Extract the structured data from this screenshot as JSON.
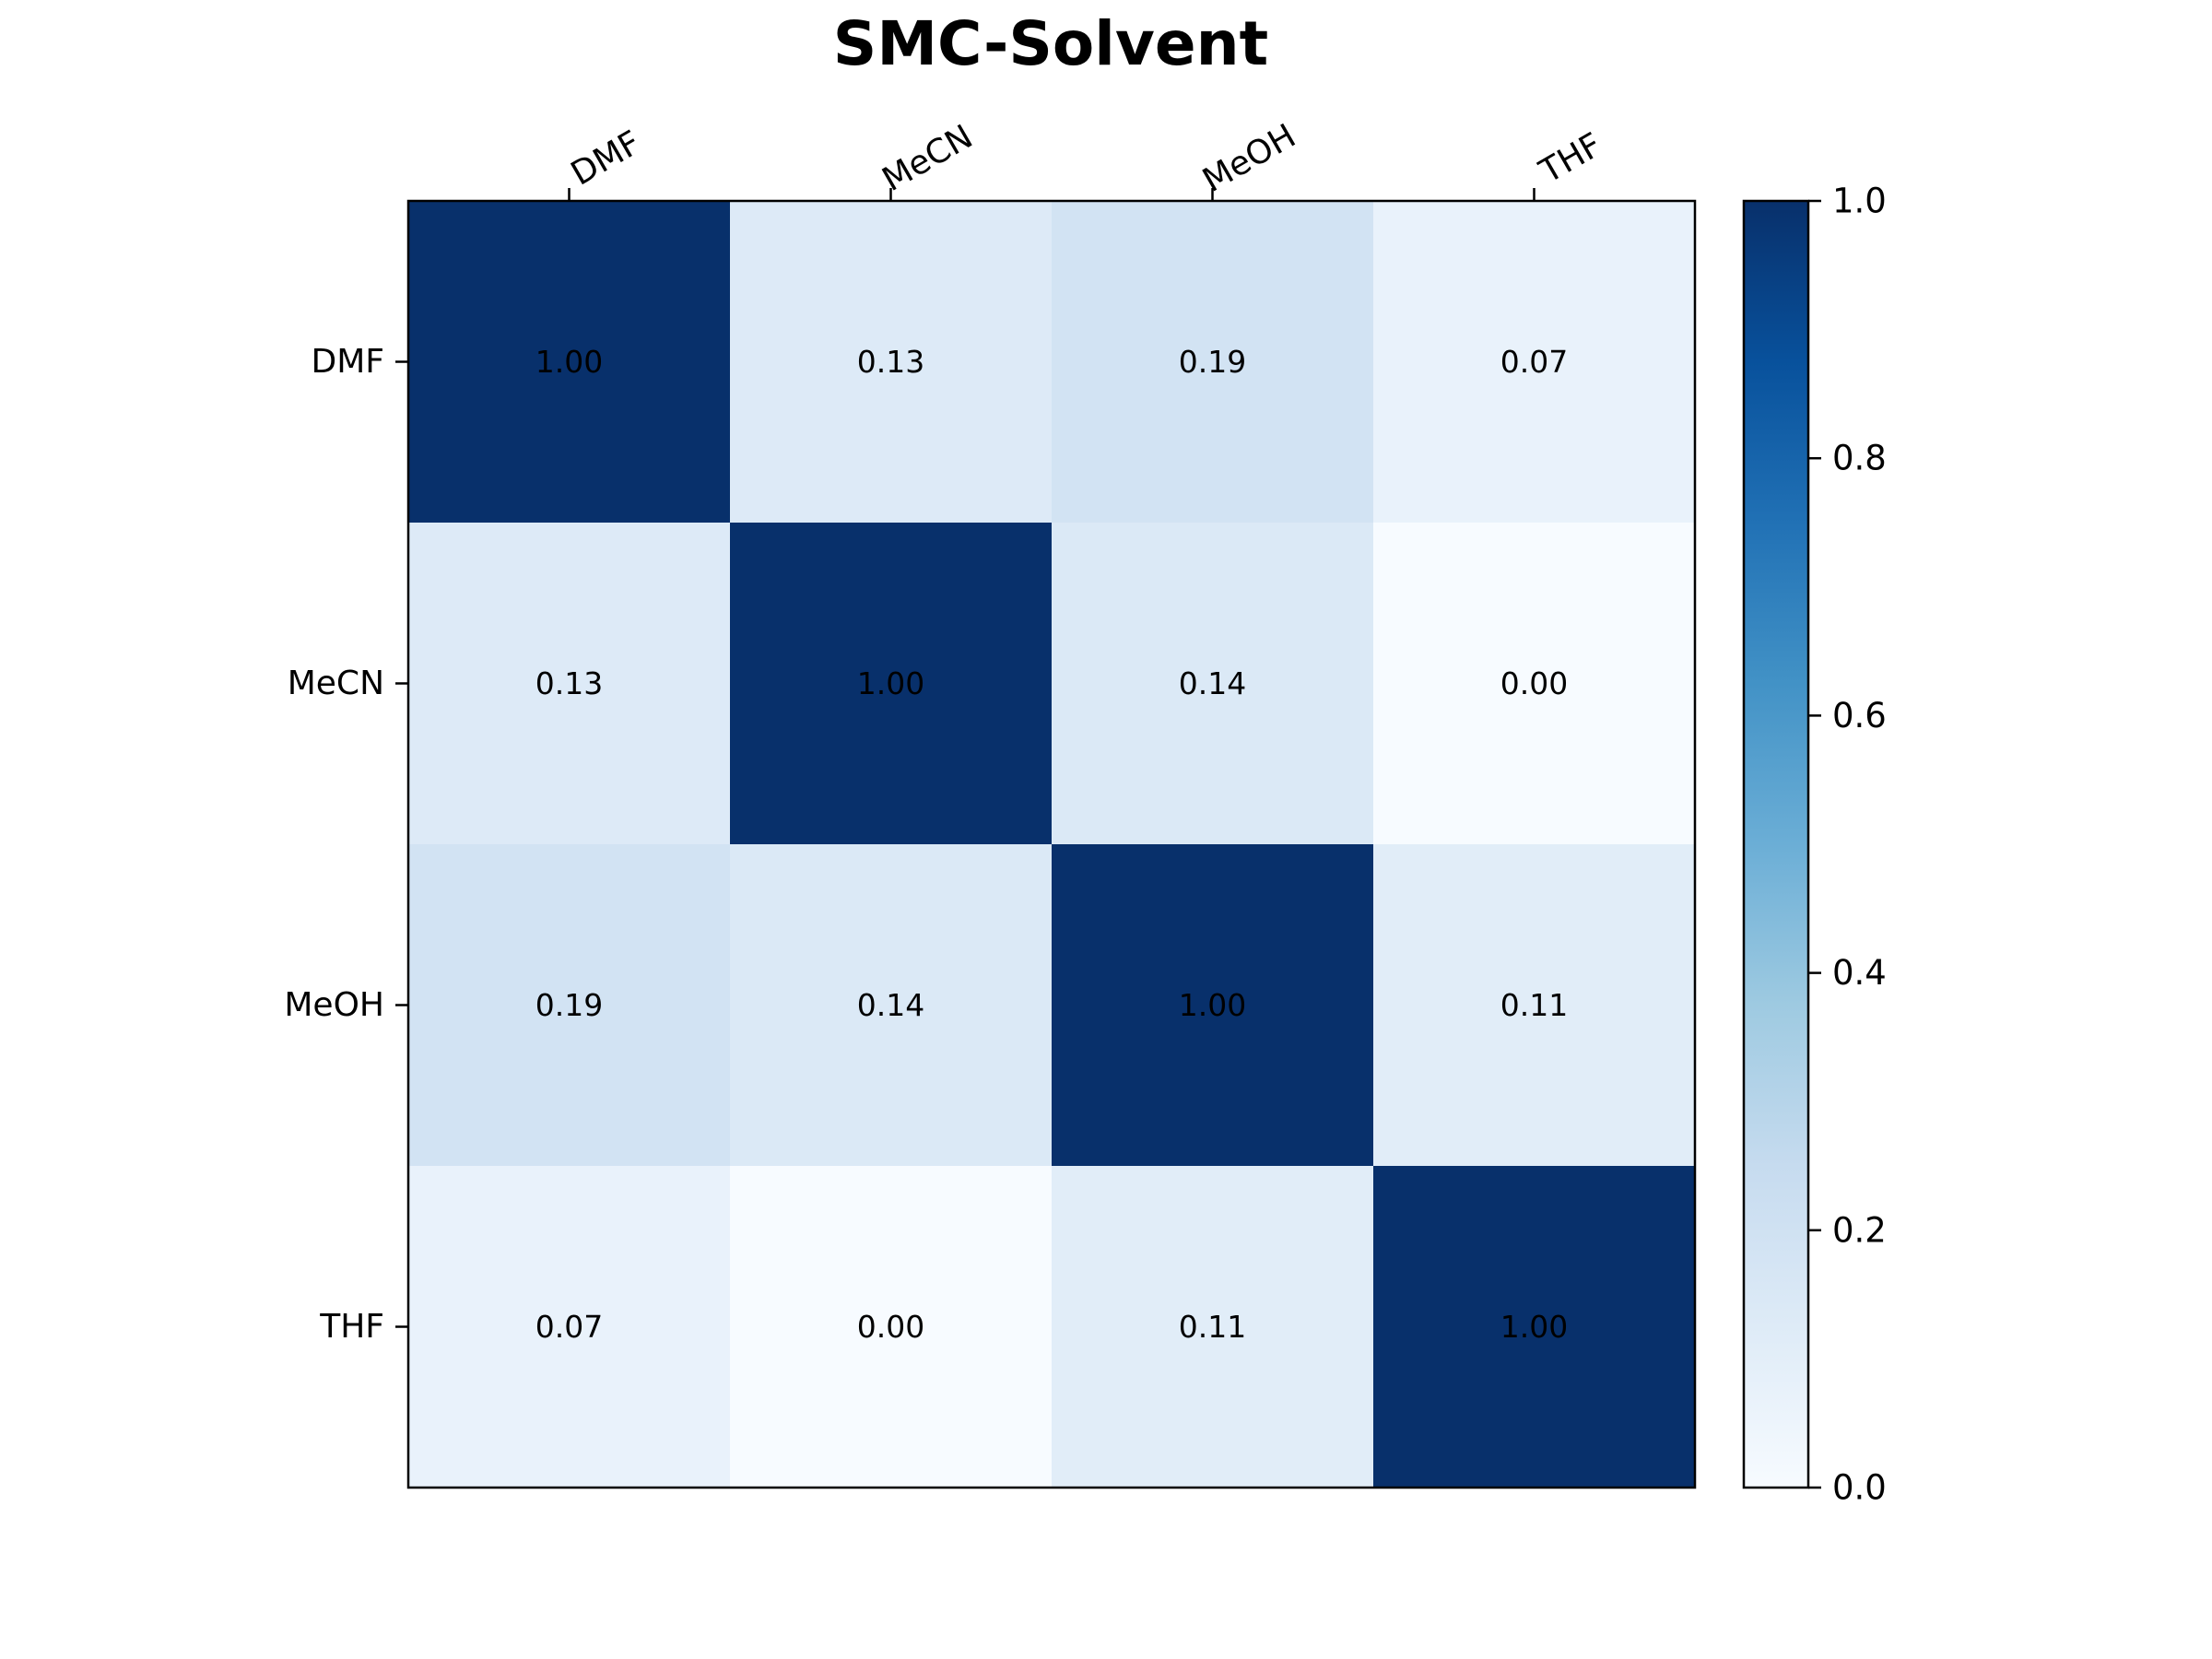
{
  "chart_data": {
    "type": "heatmap",
    "title": "SMC-Solvent",
    "x_categories": [
      "DMF",
      "MeCN",
      "MeOH",
      "THF"
    ],
    "y_categories": [
      "DMF",
      "MeCN",
      "MeOH",
      "THF"
    ],
    "values": [
      [
        1.0,
        0.13,
        0.19,
        0.07
      ],
      [
        0.13,
        1.0,
        0.14,
        0.0
      ],
      [
        0.19,
        0.14,
        1.0,
        0.11
      ],
      [
        0.07,
        0.0,
        0.11,
        1.0
      ]
    ],
    "cell_labels": [
      [
        "1.00",
        "0.13",
        "0.19",
        "0.07"
      ],
      [
        "0.13",
        "1.00",
        "0.14",
        "0.00"
      ],
      [
        "0.19",
        "0.14",
        "1.00",
        "0.11"
      ],
      [
        "0.07",
        "0.00",
        "0.11",
        "1.00"
      ]
    ],
    "colormap": "Blues",
    "colormap_stops": [
      "#f7fbff",
      "#deebf7",
      "#c6dbef",
      "#9ecae1",
      "#6baed6",
      "#4292c6",
      "#2171b5",
      "#08519c",
      "#08306b"
    ],
    "vmin": 0.0,
    "vmax": 1.0,
    "colorbar_ticks": [
      0.0,
      0.2,
      0.4,
      0.6,
      0.8,
      1.0
    ],
    "colorbar_tick_labels": [
      "0.0",
      "0.2",
      "0.4",
      "0.6",
      "0.8",
      "1.0"
    ],
    "x_ticks_position": "top",
    "colorbar_position": "right"
  }
}
